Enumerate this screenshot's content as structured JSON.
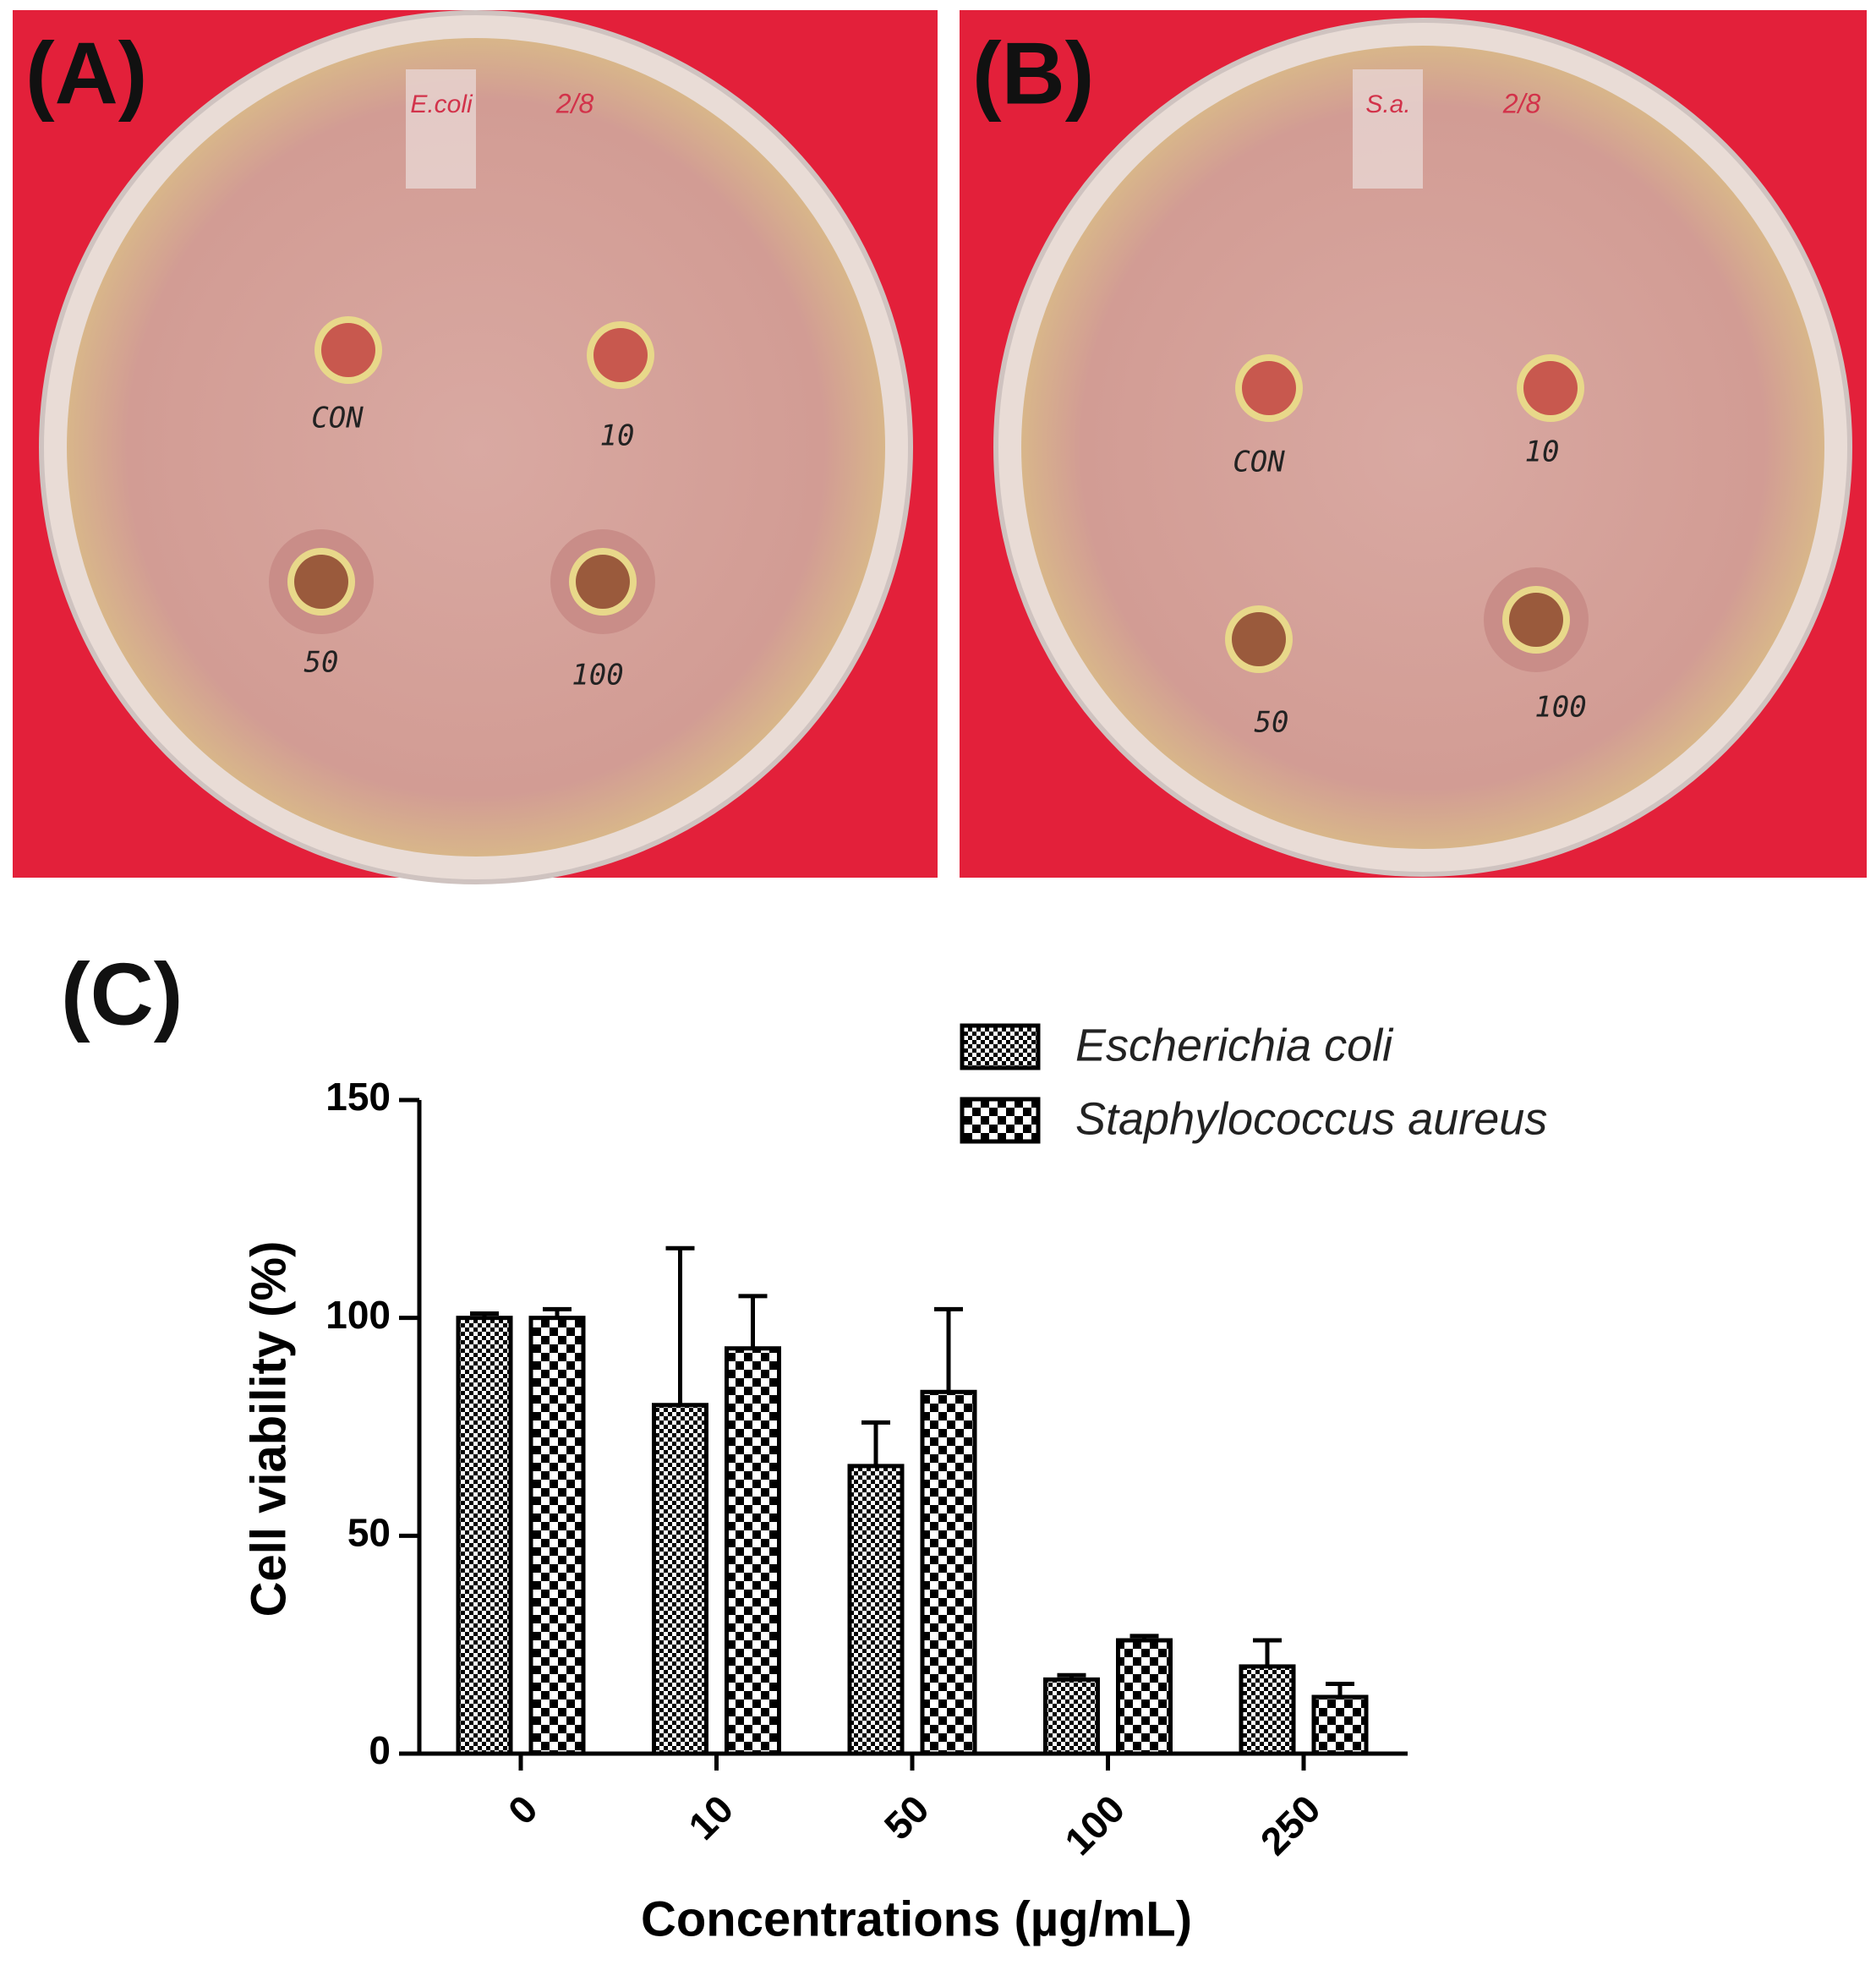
{
  "panels": [
    {
      "label": "(A)",
      "tape_label": "E.coli",
      "date": "2/8",
      "plate_labels": [
        "CON",
        "10",
        "50",
        "100"
      ]
    },
    {
      "label": "(B)",
      "tape_label": "S.a.",
      "date": "2/8",
      "plate_labels": [
        "CON",
        "10",
        "50",
        "100"
      ]
    }
  ],
  "chart_data": {
    "type": "bar",
    "panel_label": "(C)",
    "x_label": "Concentrations (µg/mL)",
    "y_label": "Cell viability (%)",
    "categories": [
      "0",
      "10",
      "50",
      "100",
      "250"
    ],
    "series": [
      {
        "name": "Escherichia coli",
        "color": "#000000",
        "values": [
          100,
          80,
          66,
          17,
          20
        ],
        "errors": [
          1,
          36,
          10,
          1,
          6
        ]
      },
      {
        "name": "Staphylococcus aureus",
        "color": "#000000",
        "values": [
          100,
          93,
          83,
          26,
          13
        ],
        "errors": [
          2,
          12,
          19,
          1,
          3
        ]
      }
    ],
    "ylim": [
      0,
      150
    ],
    "yticks": [
      0,
      50,
      100,
      150
    ],
    "legend": "top-right"
  }
}
